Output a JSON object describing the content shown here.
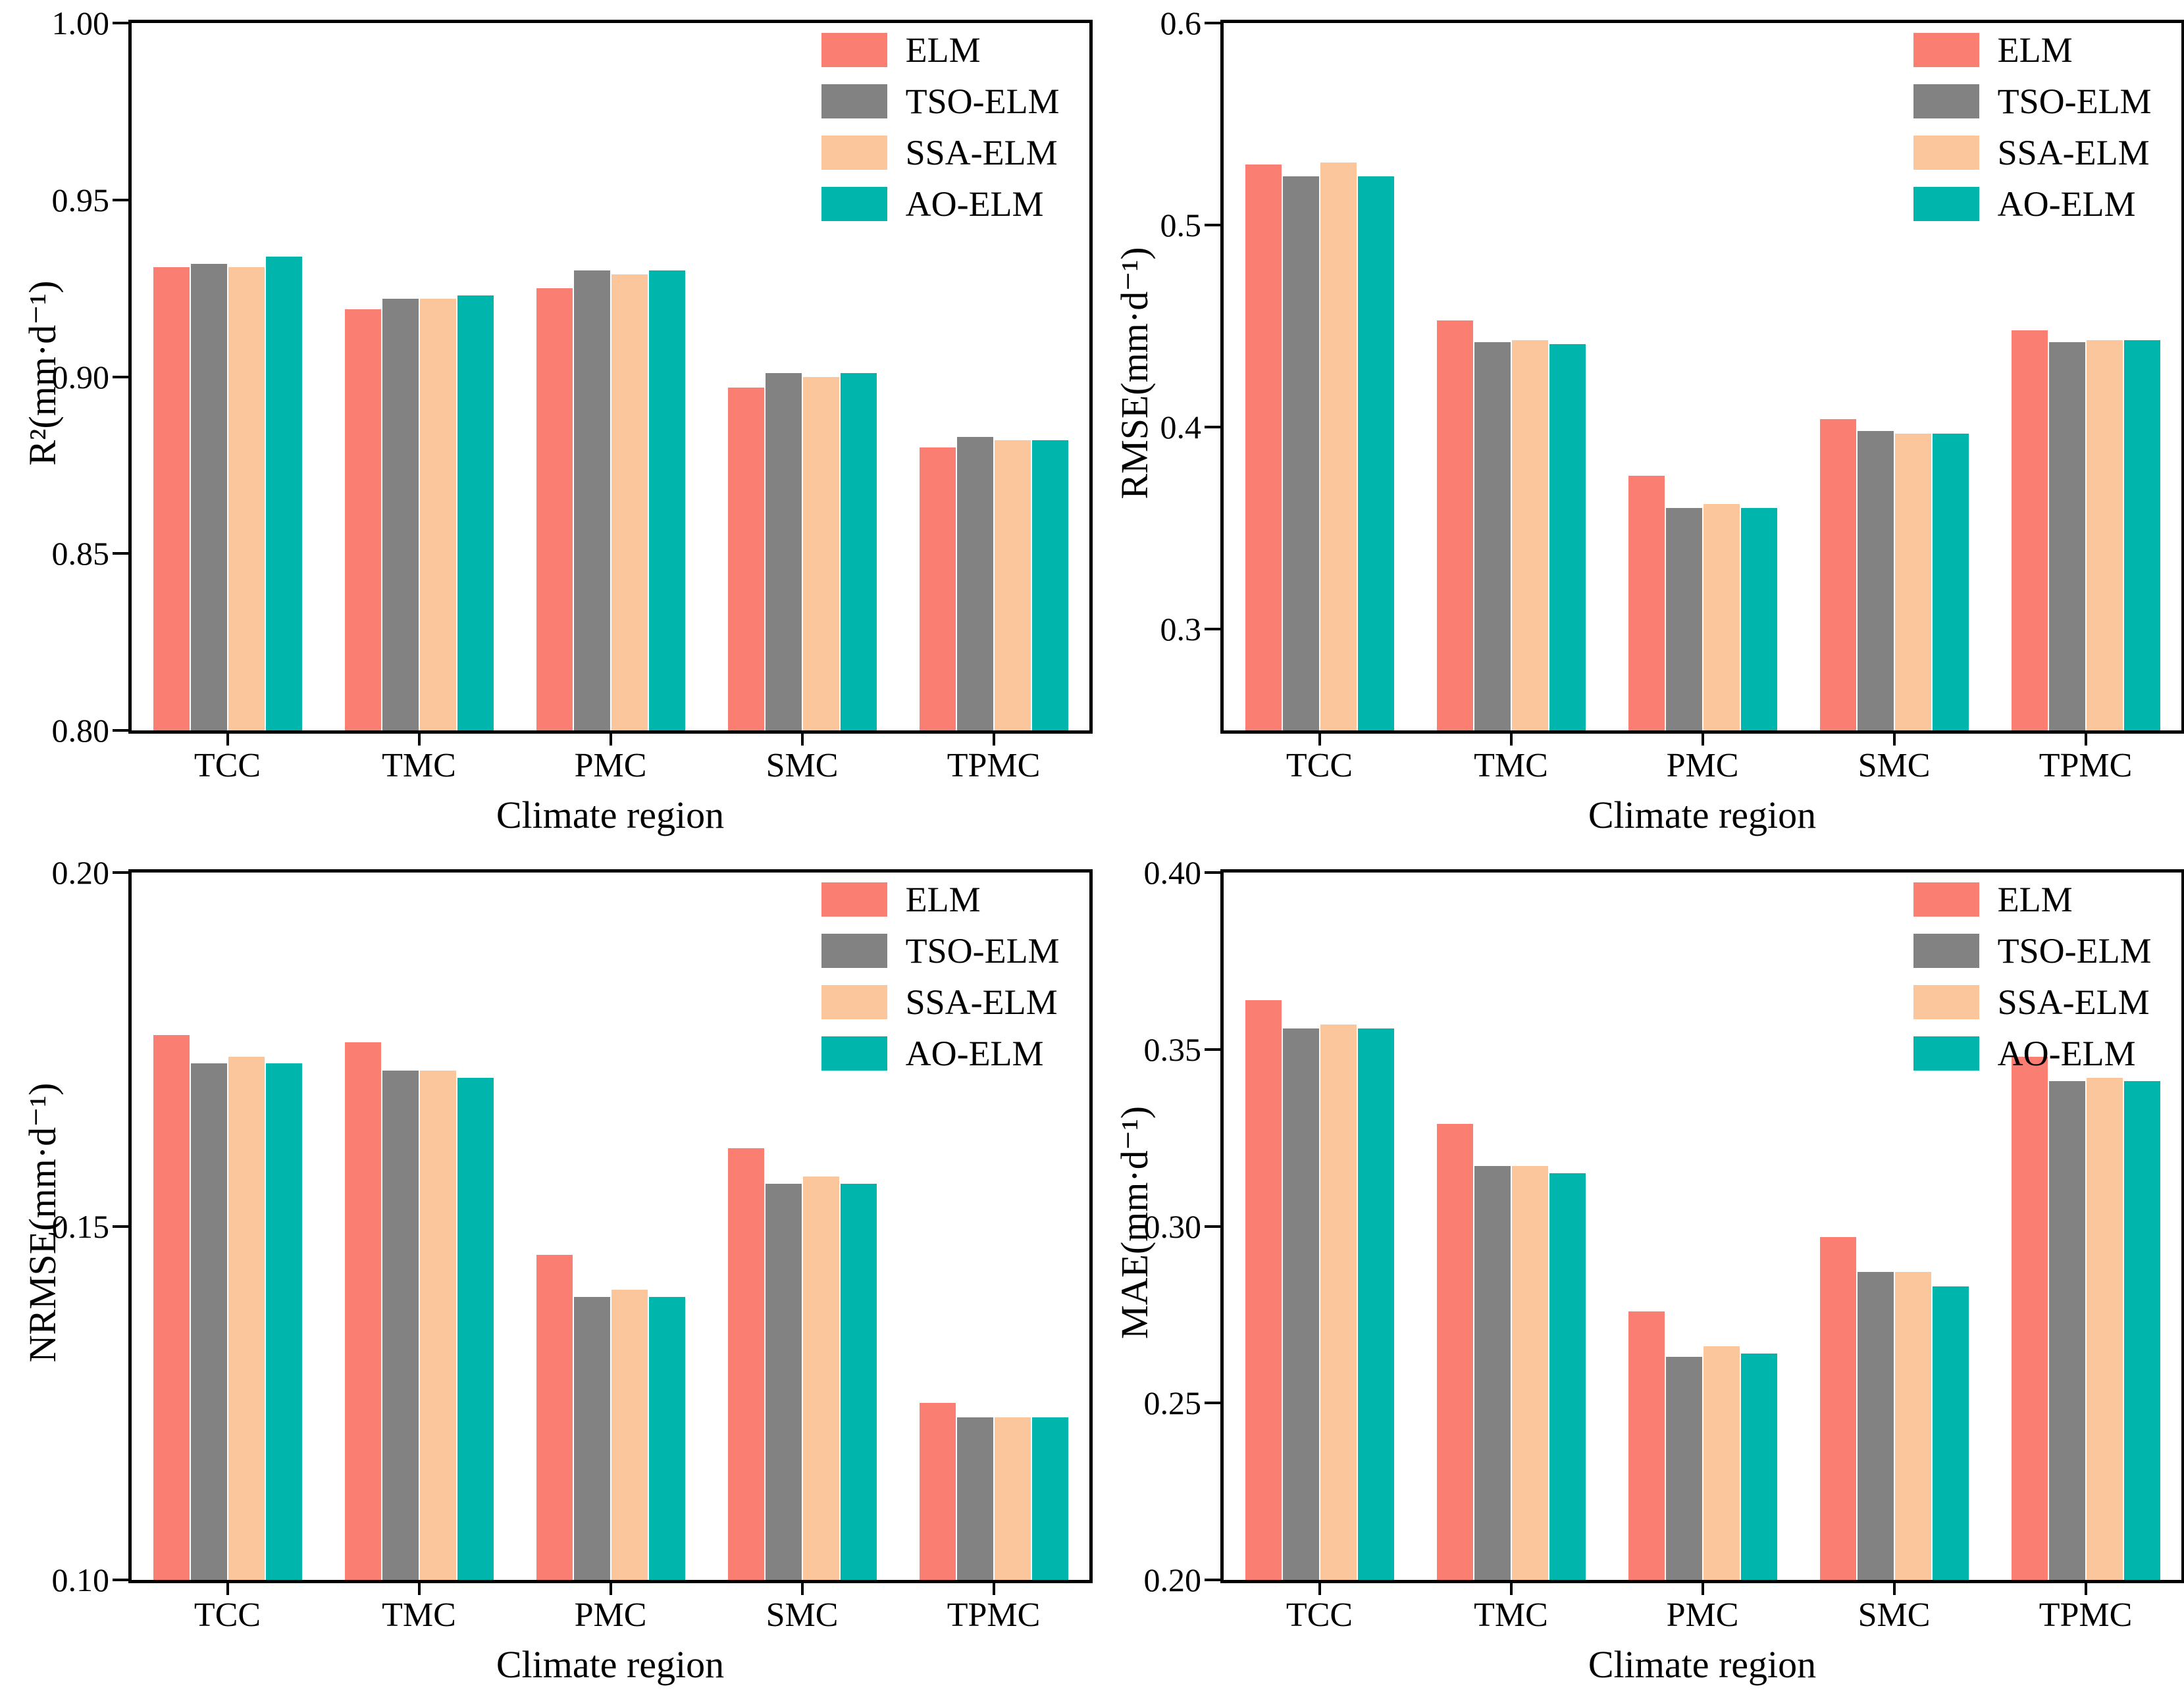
{
  "figure": {
    "xlabel": "Climate region",
    "background": "#ffffff",
    "axis_color": "#000000"
  },
  "legend": {
    "position": "top-right-inside-plot",
    "entries": [
      {
        "label": "ELM",
        "color": "#FA7E72"
      },
      {
        "label": "TSO-ELM",
        "color": "#828282"
      },
      {
        "label": "SSA-ELM",
        "color": "#FCC69C"
      },
      {
        "label": "AO-ELM",
        "color": "#00B5AC"
      }
    ]
  },
  "chart_data": [
    {
      "type": "bar",
      "title": "",
      "ylabel": "R²(mm·d⁻¹)",
      "xlabel": "Climate region",
      "grid": false,
      "legend_position": "top-right",
      "ylim": [
        0.8,
        1.0
      ],
      "yticks": [
        {
          "label": "1.00",
          "value": 1.0
        },
        {
          "label": "0.95",
          "value": 0.95
        },
        {
          "label": "0.90",
          "value": 0.9
        },
        {
          "label": "0.85",
          "value": 0.85
        },
        {
          "label": "0.80",
          "value": 0.8
        }
      ],
      "categories": [
        "TCC",
        "TMC",
        "PMC",
        "SMC",
        "TPMC"
      ],
      "series": [
        {
          "name": "ELM",
          "values": [
            0.931,
            0.919,
            0.925,
            0.897,
            0.88
          ]
        },
        {
          "name": "TSO-ELM",
          "values": [
            0.932,
            0.922,
            0.93,
            0.901,
            0.883
          ]
        },
        {
          "name": "SSA-ELM",
          "values": [
            0.931,
            0.922,
            0.929,
            0.9,
            0.882
          ]
        },
        {
          "name": "AO-ELM",
          "values": [
            0.934,
            0.923,
            0.93,
            0.901,
            0.882
          ]
        }
      ]
    },
    {
      "type": "bar",
      "title": "",
      "ylabel": "RMSE(mm·d⁻¹)",
      "xlabel": "Climate region",
      "grid": false,
      "legend_position": "top-right",
      "ylim": [
        0.25,
        0.6
      ],
      "yticks": [
        {
          "label": "0.6",
          "value": 0.6
        },
        {
          "label": "0.5",
          "value": 0.5
        },
        {
          "label": "0.4",
          "value": 0.4
        },
        {
          "label": "0.3",
          "value": 0.3
        }
      ],
      "categories": [
        "TCC",
        "TMC",
        "PMC",
        "SMC",
        "TPMC"
      ],
      "series": [
        {
          "name": "ELM",
          "values": [
            0.53,
            0.453,
            0.376,
            0.404,
            0.448
          ]
        },
        {
          "name": "TSO-ELM",
          "values": [
            0.524,
            0.442,
            0.36,
            0.398,
            0.442
          ]
        },
        {
          "name": "SSA-ELM",
          "values": [
            0.531,
            0.443,
            0.362,
            0.397,
            0.443
          ]
        },
        {
          "name": "AO-ELM",
          "values": [
            0.524,
            0.441,
            0.36,
            0.397,
            0.443
          ]
        }
      ]
    },
    {
      "type": "bar",
      "title": "",
      "ylabel": "NRMSE(mm·d⁻¹)",
      "xlabel": "Climate region",
      "grid": false,
      "legend_position": "top-right",
      "ylim": [
        0.1,
        0.2
      ],
      "yticks": [
        {
          "label": "0.20",
          "value": 0.2
        },
        {
          "label": "0.15",
          "value": 0.15
        },
        {
          "label": "0.10",
          "value": 0.1
        }
      ],
      "categories": [
        "TCC",
        "TMC",
        "PMC",
        "SMC",
        "TPMC"
      ],
      "series": [
        {
          "name": "ELM",
          "values": [
            0.177,
            0.176,
            0.146,
            0.161,
            0.125
          ]
        },
        {
          "name": "TSO-ELM",
          "values": [
            0.173,
            0.172,
            0.14,
            0.156,
            0.123
          ]
        },
        {
          "name": "SSA-ELM",
          "values": [
            0.174,
            0.172,
            0.141,
            0.157,
            0.123
          ]
        },
        {
          "name": "AO-ELM",
          "values": [
            0.173,
            0.171,
            0.14,
            0.156,
            0.123
          ]
        }
      ]
    },
    {
      "type": "bar",
      "title": "",
      "ylabel": "MAE(mm·d⁻¹)",
      "xlabel": "Climate region",
      "grid": false,
      "legend_position": "top-right",
      "ylim": [
        0.2,
        0.4
      ],
      "yticks": [
        {
          "label": "0.40",
          "value": 0.4
        },
        {
          "label": "0.35",
          "value": 0.35
        },
        {
          "label": "0.30",
          "value": 0.3
        },
        {
          "label": "0.25",
          "value": 0.25
        },
        {
          "label": "0.20",
          "value": 0.2
        }
      ],
      "categories": [
        "TCC",
        "TMC",
        "PMC",
        "SMC",
        "TPMC"
      ],
      "series": [
        {
          "name": "ELM",
          "values": [
            0.364,
            0.329,
            0.276,
            0.297,
            0.348
          ]
        },
        {
          "name": "TSO-ELM",
          "values": [
            0.356,
            0.317,
            0.263,
            0.287,
            0.341
          ]
        },
        {
          "name": "SSA-ELM",
          "values": [
            0.357,
            0.317,
            0.266,
            0.287,
            0.342
          ]
        },
        {
          "name": "AO-ELM",
          "values": [
            0.356,
            0.315,
            0.264,
            0.283,
            0.341
          ]
        }
      ]
    }
  ]
}
